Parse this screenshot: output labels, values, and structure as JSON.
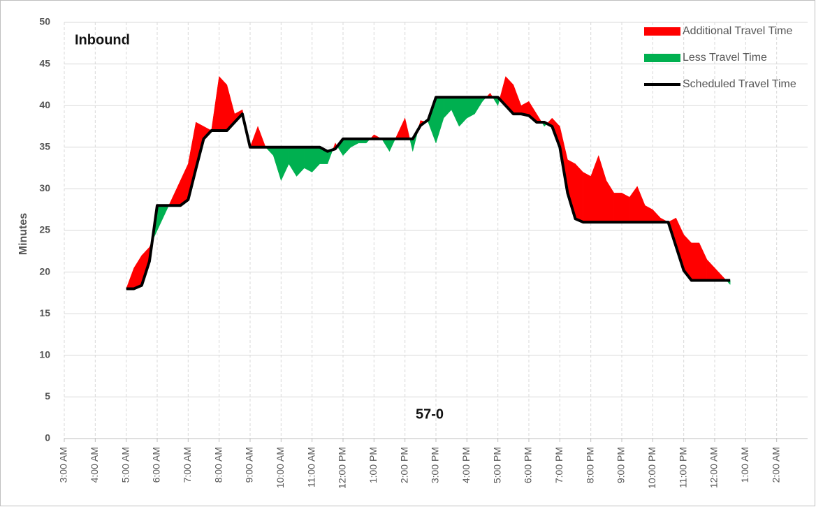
{
  "chart_data": {
    "type": "area",
    "title": "Inbound",
    "annotation": "57-0",
    "y_label": "Minutes",
    "x": [
      5.0,
      5.25,
      5.5,
      5.75,
      6.0,
      6.25,
      6.5,
      6.75,
      7.0,
      7.25,
      7.5,
      7.75,
      8.0,
      8.25,
      8.5,
      8.75,
      9.0,
      9.25,
      9.5,
      9.75,
      10.0,
      10.25,
      10.5,
      10.75,
      11.0,
      11.25,
      11.5,
      11.75,
      12.0,
      12.25,
      12.5,
      12.75,
      13.0,
      13.25,
      13.5,
      13.75,
      14.0,
      14.25,
      14.5,
      14.75,
      15.0,
      15.25,
      15.5,
      15.75,
      16.0,
      16.25,
      16.5,
      16.75,
      17.0,
      17.25,
      17.5,
      17.75,
      18.0,
      18.25,
      18.5,
      18.75,
      19.0,
      19.25,
      19.5,
      19.75,
      20.0,
      20.25,
      20.5,
      20.75,
      21.0,
      21.25,
      21.5,
      21.75,
      22.0,
      22.25,
      22.5,
      22.75,
      23.0,
      23.25,
      23.5,
      23.75,
      24.0,
      24.25,
      24.5
    ],
    "actual": [
      18,
      20.5,
      22,
      23,
      25,
      27,
      29,
      31,
      33,
      38,
      37.5,
      37,
      43.5,
      42.5,
      39,
      39.5,
      35,
      37.5,
      35,
      34,
      31,
      33,
      31.5,
      32.5,
      32,
      33,
      33,
      35.5,
      34,
      35,
      35.5,
      35.5,
      36.5,
      36,
      34.5,
      36.5,
      38.5,
      34.5,
      38.2,
      38,
      35.5,
      38.5,
      39.5,
      37.5,
      38.5,
      39,
      40.5,
      41.5,
      40,
      43.5,
      42.5,
      40,
      40.5,
      39,
      37.5,
      38.5,
      37.5,
      33.5,
      33,
      32,
      31.5,
      34,
      31,
      29.5,
      29.5,
      29,
      30.3,
      28,
      27.5,
      26.5,
      26,
      26.5,
      24.5,
      23.5,
      23.5,
      21.5,
      20.5,
      19.5,
      18.5
    ],
    "series": [
      {
        "name": "Additional Travel Time",
        "color": "#ff0000"
      },
      {
        "name": "Less Travel Time",
        "color": "#00b050"
      },
      {
        "name": "Scheduled Travel Time",
        "color": "#000000",
        "values": [
          18,
          18,
          18.4,
          21.3,
          28,
          28,
          28,
          28,
          28.7,
          32.4,
          36,
          37,
          37,
          37,
          38,
          39,
          35,
          35,
          35,
          35,
          35,
          35,
          35,
          35,
          35,
          35,
          34.5,
          34.8,
          36,
          36,
          36,
          36,
          36,
          36,
          36,
          36,
          36,
          36,
          37.6,
          38.3,
          41,
          41,
          41,
          41,
          41,
          41,
          41,
          41,
          41,
          40,
          39,
          39,
          38.8,
          38,
          38,
          37.5,
          35,
          29.5,
          26.4,
          26,
          26,
          26,
          26,
          26,
          26,
          26,
          26,
          26,
          26,
          26,
          26,
          23.1,
          20.2,
          19,
          19,
          19,
          19,
          19,
          19
        ]
      }
    ],
    "xlim": [
      3,
      27
    ],
    "xticks": [
      {
        "value": 3,
        "label": "3:00 AM"
      },
      {
        "value": 4,
        "label": "4:00 AM"
      },
      {
        "value": 5,
        "label": "5:00 AM"
      },
      {
        "value": 6,
        "label": "6:00 AM"
      },
      {
        "value": 7,
        "label": "7:00 AM"
      },
      {
        "value": 8,
        "label": "8:00 AM"
      },
      {
        "value": 9,
        "label": "9:00 AM"
      },
      {
        "value": 10,
        "label": "10:00 AM"
      },
      {
        "value": 11,
        "label": "11:00 AM"
      },
      {
        "value": 12,
        "label": "12:00 PM"
      },
      {
        "value": 13,
        "label": "1:00 PM"
      },
      {
        "value": 14,
        "label": "2:00 PM"
      },
      {
        "value": 15,
        "label": "3:00 PM"
      },
      {
        "value": 16,
        "label": "4:00 PM"
      },
      {
        "value": 17,
        "label": "5:00 PM"
      },
      {
        "value": 18,
        "label": "6:00 PM"
      },
      {
        "value": 19,
        "label": "7:00 PM"
      },
      {
        "value": 20,
        "label": "8:00 PM"
      },
      {
        "value": 21,
        "label": "9:00 PM"
      },
      {
        "value": 22,
        "label": "10:00 PM"
      },
      {
        "value": 23,
        "label": "11:00 PM"
      },
      {
        "value": 24,
        "label": "12:00 AM"
      },
      {
        "value": 25,
        "label": "1:00 AM"
      },
      {
        "value": 26,
        "label": "2:00 AM"
      }
    ],
    "ylim": [
      0,
      50
    ],
    "yticks": [
      0,
      5,
      10,
      15,
      20,
      25,
      30,
      35,
      40,
      45,
      50
    ],
    "grid": true,
    "legend": "top-right"
  }
}
